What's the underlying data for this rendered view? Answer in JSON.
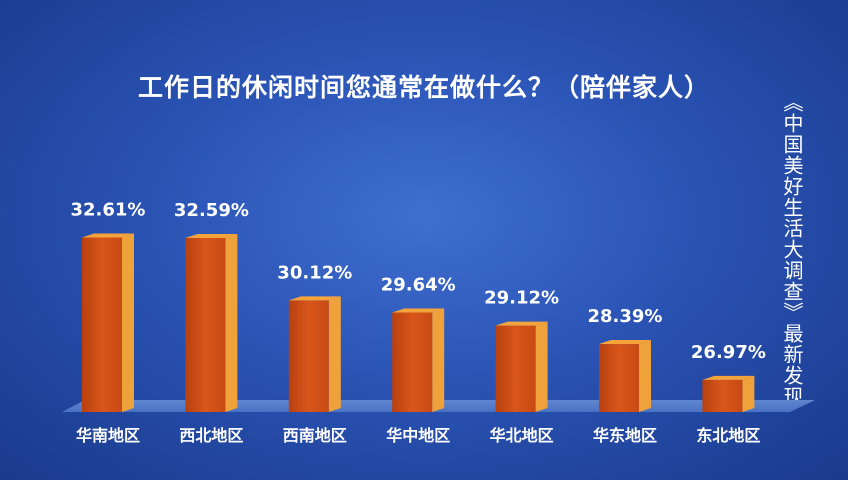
{
  "chart_data": {
    "type": "bar",
    "title": "工作日的休闲时间您通常在做什么？（陪伴家人）",
    "categories": [
      "华南地区",
      "西北地区",
      "西南地区",
      "华中地区",
      "华北地区",
      "华东地区",
      "东北地区"
    ],
    "values": [
      32.61,
      32.59,
      30.12,
      29.64,
      29.12,
      28.39,
      26.97
    ],
    "value_labels": [
      "32.61%",
      "32.59%",
      "30.12%",
      "29.64%",
      "29.12%",
      "28.39%",
      "26.97%"
    ],
    "xlabel": "",
    "ylabel": "",
    "ylim": [
      25.7,
      33.5
    ],
    "grid": false,
    "bar_color": "#d4541a",
    "bar_side_color": "#f0a23a",
    "bar_top_color": "#f5a43c"
  },
  "side_caption": "《中国美好生活大调查》最新发现"
}
